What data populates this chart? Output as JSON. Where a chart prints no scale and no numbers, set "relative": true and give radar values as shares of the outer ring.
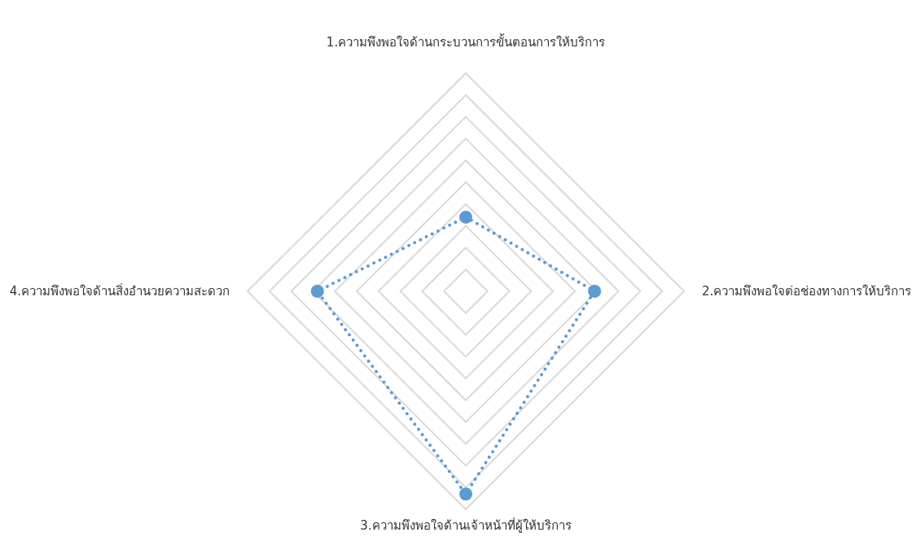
{
  "chart_data": {
    "type": "radar",
    "relative": true,
    "grid": true,
    "marker": "circle",
    "line_style": "dotted",
    "categories": [
      "1.ความพึงพอใจด้านกระบวนการขั้นตอนการให้บริการ",
      "2.ความพึงพอใจต่อช่องทางการให้บริการ",
      "3.ความพึงพอใจด้านเจ้าหน้าที่ผู้ให้บริการ",
      "4.ความพึงพอใจด้านสิ่งอำนวยความสะดวก"
    ],
    "series": [
      {
        "color": "#5b9bd5",
        "values": [
          0.34,
          0.59,
          0.93,
          0.68
        ]
      }
    ]
  }
}
